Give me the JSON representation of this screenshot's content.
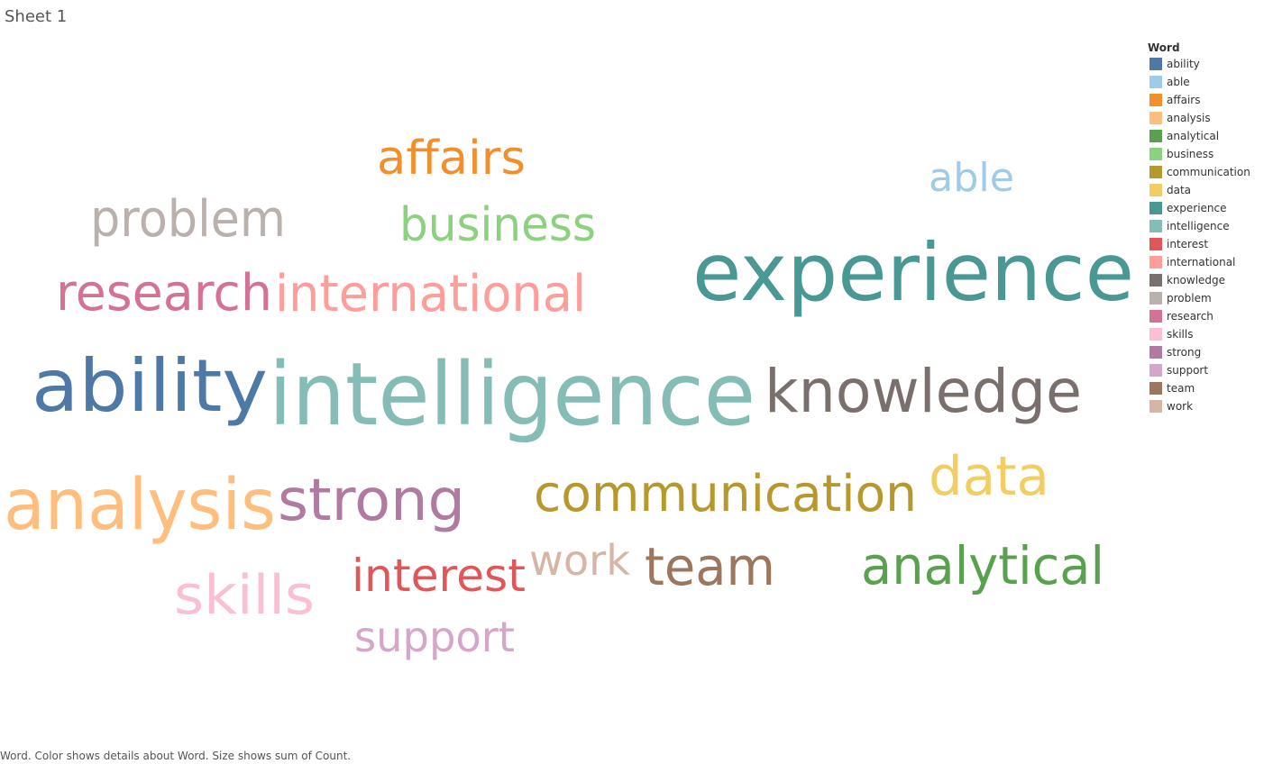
{
  "sheet": {
    "title": "Sheet 1"
  },
  "legend": {
    "title": "Word"
  },
  "caption": "Word.  Color shows details about Word.  Size shows sum of Count.",
  "chart_data": {
    "type": "wordcloud",
    "size_measure": "sum of Count",
    "color_field": "Word",
    "words": [
      {
        "text": "ability",
        "color": "#4e79a7",
        "weight": 80
      },
      {
        "text": "able",
        "color": "#a0cbe8",
        "weight": 44
      },
      {
        "text": "affairs",
        "color": "#f28e2b",
        "weight": 52
      },
      {
        "text": "analysis",
        "color": "#ffbe7d",
        "weight": 78
      },
      {
        "text": "analytical",
        "color": "#59a14f",
        "weight": 58
      },
      {
        "text": "business",
        "color": "#8cd17d",
        "weight": 52
      },
      {
        "text": "communication",
        "color": "#b6992d",
        "weight": 56
      },
      {
        "text": "data",
        "color": "#f1ce63",
        "weight": 60
      },
      {
        "text": "experience",
        "color": "#499894",
        "weight": 88
      },
      {
        "text": "intelligence",
        "color": "#86bcb6",
        "weight": 96
      },
      {
        "text": "interest",
        "color": "#e15759",
        "weight": 50
      },
      {
        "text": "international",
        "color": "#ff9d9a",
        "weight": 56
      },
      {
        "text": "knowledge",
        "color": "#79706e",
        "weight": 66
      },
      {
        "text": "problem",
        "color": "#bab0ac",
        "weight": 56
      },
      {
        "text": "research",
        "color": "#d37295",
        "weight": 56
      },
      {
        "text": "skills",
        "color": "#fabfd2",
        "weight": 60
      },
      {
        "text": "strong",
        "color": "#b07aa1",
        "weight": 64
      },
      {
        "text": "support",
        "color": "#d4a6c8",
        "weight": 46
      },
      {
        "text": "team",
        "color": "#9d7660",
        "weight": 58
      },
      {
        "text": "work",
        "color": "#d7b5a6",
        "weight": 46
      }
    ]
  }
}
